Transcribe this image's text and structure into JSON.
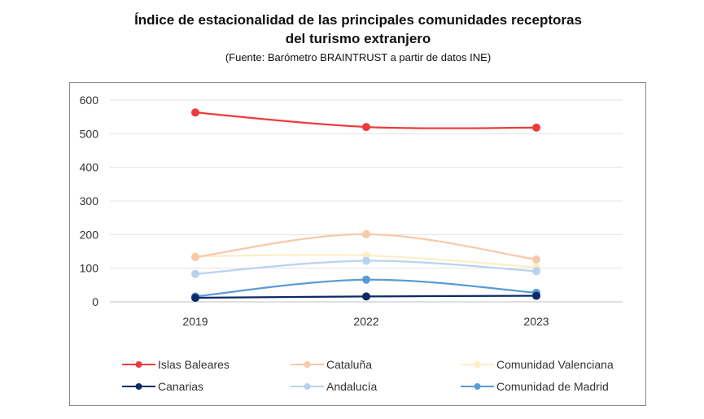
{
  "title_line1": "Índice de estacionalidad de las principales comunidades receptoras",
  "title_line2": "del turismo extranjero",
  "source": "(Fuente: Barómetro BRAINTRUST a partir de datos INE)",
  "chart_data": {
    "type": "line",
    "x": [
      "2019",
      "2022",
      "2023"
    ],
    "ylim": [
      0,
      600
    ],
    "yticks": [
      0,
      100,
      200,
      300,
      400,
      500,
      600
    ],
    "grid": true,
    "legend_position": "bottom",
    "series": [
      {
        "name": "Islas Baleares",
        "values": [
          563,
          520,
          518
        ],
        "color": "#ef3b3b"
      },
      {
        "name": "Cataluña",
        "values": [
          133,
          201,
          126
        ],
        "color": "#f7c9a9"
      },
      {
        "name": "Comunidad Valenciana",
        "values": [
          135,
          138,
          103
        ],
        "color": "#fdeec8"
      },
      {
        "name": "Canarias",
        "values": [
          12,
          16,
          18
        ],
        "color": "#0b2a66"
      },
      {
        "name": "Andalucía",
        "values": [
          83,
          122,
          91
        ],
        "color": "#b9d3ee"
      },
      {
        "name": "Comunidad de Madrid",
        "values": [
          16,
          66,
          27
        ],
        "color": "#5b9bd5"
      }
    ]
  }
}
